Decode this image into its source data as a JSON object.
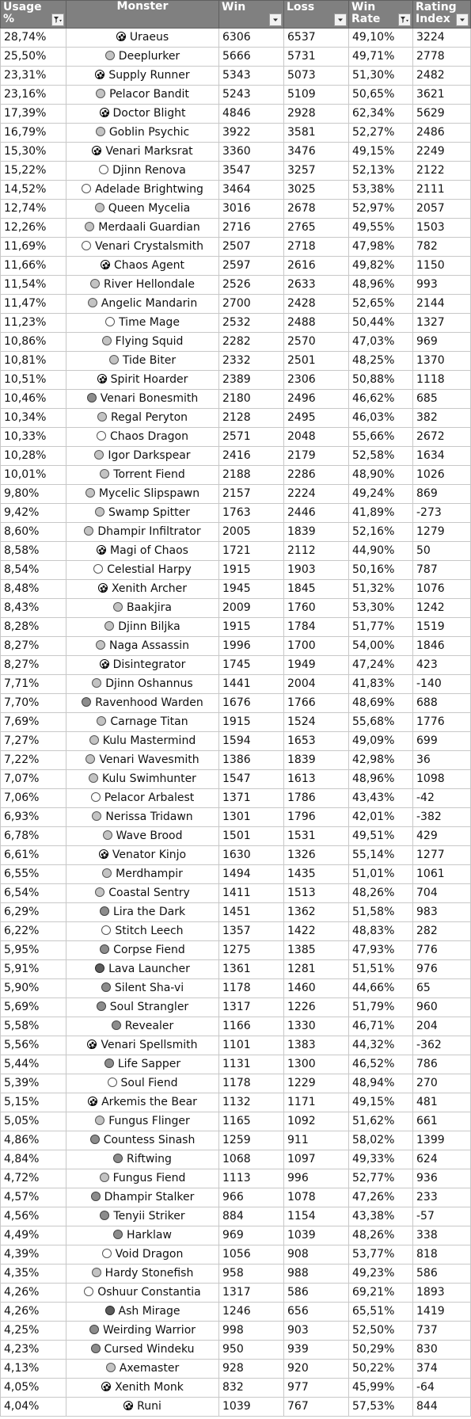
{
  "header": {
    "usage": "Usage %",
    "monster": "Monster",
    "win": "Win",
    "loss": "Loss",
    "win_rate": "Win Rate",
    "rating_index": "Rating Index"
  },
  "icons": {
    "filter": "filter-dropdown-icon",
    "filter_active": "filter-applied-icon",
    "color_dot": "mana-color-icon"
  },
  "colors": {
    "header_bg": "#808080",
    "header_text": "#ffffff",
    "grid": "#c8c8c8"
  },
  "rows": [
    {
      "usage": "28,74%",
      "dot": "multi",
      "monster": "Uraeus",
      "win": "6306",
      "loss": "6537",
      "rate": "49,10%",
      "index": "3224"
    },
    {
      "usage": "25,50%",
      "dot": "light",
      "monster": "Deeplurker",
      "win": "5666",
      "loss": "5731",
      "rate": "49,71%",
      "index": "2778"
    },
    {
      "usage": "23,31%",
      "dot": "multi",
      "monster": "Supply Runner",
      "win": "5343",
      "loss": "5073",
      "rate": "51,30%",
      "index": "2482"
    },
    {
      "usage": "23,16%",
      "dot": "light",
      "monster": "Pelacor Bandit",
      "win": "5243",
      "loss": "5109",
      "rate": "50,65%",
      "index": "3621"
    },
    {
      "usage": "17,39%",
      "dot": "multi",
      "monster": "Doctor Blight",
      "win": "4846",
      "loss": "2928",
      "rate": "62,34%",
      "index": "5629"
    },
    {
      "usage": "16,79%",
      "dot": "light",
      "monster": "Goblin Psychic",
      "win": "3922",
      "loss": "3581",
      "rate": "52,27%",
      "index": "2486"
    },
    {
      "usage": "15,30%",
      "dot": "multi",
      "monster": "Venari Marksrat",
      "win": "3360",
      "loss": "3476",
      "rate": "49,15%",
      "index": "2249"
    },
    {
      "usage": "15,22%",
      "dot": "white",
      "monster": "Djinn Renova",
      "win": "3547",
      "loss": "3257",
      "rate": "52,13%",
      "index": "2122"
    },
    {
      "usage": "14,52%",
      "dot": "white",
      "monster": "Adelade Brightwing",
      "win": "3464",
      "loss": "3025",
      "rate": "53,38%",
      "index": "2111"
    },
    {
      "usage": "12,74%",
      "dot": "light",
      "monster": "Queen Mycelia",
      "win": "3016",
      "loss": "2678",
      "rate": "52,97%",
      "index": "2057"
    },
    {
      "usage": "12,26%",
      "dot": "light",
      "monster": "Merdaali Guardian",
      "win": "2716",
      "loss": "2765",
      "rate": "49,55%",
      "index": "1503"
    },
    {
      "usage": "11,69%",
      "dot": "white",
      "monster": "Venari Crystalsmith",
      "win": "2507",
      "loss": "2718",
      "rate": "47,98%",
      "index": "782"
    },
    {
      "usage": "11,66%",
      "dot": "multi",
      "monster": "Chaos Agent",
      "win": "2597",
      "loss": "2616",
      "rate": "49,82%",
      "index": "1150"
    },
    {
      "usage": "11,54%",
      "dot": "light",
      "monster": "River Hellondale",
      "win": "2526",
      "loss": "2633",
      "rate": "48,96%",
      "index": "993"
    },
    {
      "usage": "11,47%",
      "dot": "light",
      "monster": "Angelic Mandarin",
      "win": "2700",
      "loss": "2428",
      "rate": "52,65%",
      "index": "2144"
    },
    {
      "usage": "11,23%",
      "dot": "white",
      "monster": "Time Mage",
      "win": "2532",
      "loss": "2488",
      "rate": "50,44%",
      "index": "1327"
    },
    {
      "usage": "10,86%",
      "dot": "light",
      "monster": "Flying Squid",
      "win": "2282",
      "loss": "2570",
      "rate": "47,03%",
      "index": "969"
    },
    {
      "usage": "10,81%",
      "dot": "light",
      "monster": "Tide Biter",
      "win": "2332",
      "loss": "2501",
      "rate": "48,25%",
      "index": "1370"
    },
    {
      "usage": "10,51%",
      "dot": "multi",
      "monster": "Spirit Hoarder",
      "win": "2389",
      "loss": "2306",
      "rate": "50,88%",
      "index": "1118"
    },
    {
      "usage": "10,46%",
      "dot": "mid",
      "monster": "Venari Bonesmith",
      "win": "2180",
      "loss": "2496",
      "rate": "46,62%",
      "index": "685"
    },
    {
      "usage": "10,34%",
      "dot": "light",
      "monster": "Regal Peryton",
      "win": "2128",
      "loss": "2495",
      "rate": "46,03%",
      "index": "382"
    },
    {
      "usage": "10,33%",
      "dot": "white",
      "monster": "Chaos Dragon",
      "win": "2571",
      "loss": "2048",
      "rate": "55,66%",
      "index": "2672"
    },
    {
      "usage": "10,28%",
      "dot": "light",
      "monster": "Igor Darkspear",
      "win": "2416",
      "loss": "2179",
      "rate": "52,58%",
      "index": "1634"
    },
    {
      "usage": "10,01%",
      "dot": "light",
      "monster": "Torrent Fiend",
      "win": "2188",
      "loss": "2286",
      "rate": "48,90%",
      "index": "1026"
    },
    {
      "usage": "9,80%",
      "dot": "light",
      "monster": "Mycelic Slipspawn",
      "win": "2157",
      "loss": "2224",
      "rate": "49,24%",
      "index": "869"
    },
    {
      "usage": "9,42%",
      "dot": "light",
      "monster": "Swamp Spitter",
      "win": "1763",
      "loss": "2446",
      "rate": "41,89%",
      "index": "-273"
    },
    {
      "usage": "8,60%",
      "dot": "light",
      "monster": "Dhampir Infiltrator",
      "win": "2005",
      "loss": "1839",
      "rate": "52,16%",
      "index": "1279"
    },
    {
      "usage": "8,58%",
      "dot": "multi",
      "monster": "Magi of Chaos",
      "win": "1721",
      "loss": "2112",
      "rate": "44,90%",
      "index": "50"
    },
    {
      "usage": "8,54%",
      "dot": "white",
      "monster": "Celestial Harpy",
      "win": "1915",
      "loss": "1903",
      "rate": "50,16%",
      "index": "787"
    },
    {
      "usage": "8,48%",
      "dot": "multi",
      "monster": "Xenith Archer",
      "win": "1945",
      "loss": "1845",
      "rate": "51,32%",
      "index": "1076"
    },
    {
      "usage": "8,43%",
      "dot": "light",
      "monster": "Baakjira",
      "win": "2009",
      "loss": "1760",
      "rate": "53,30%",
      "index": "1242"
    },
    {
      "usage": "8,28%",
      "dot": "light",
      "monster": "Djinn Biljka",
      "win": "1915",
      "loss": "1784",
      "rate": "51,77%",
      "index": "1519"
    },
    {
      "usage": "8,27%",
      "dot": "light",
      "monster": "Naga Assassin",
      "win": "1996",
      "loss": "1700",
      "rate": "54,00%",
      "index": "1846"
    },
    {
      "usage": "8,27%",
      "dot": "multi",
      "monster": "Disintegrator",
      "win": "1745",
      "loss": "1949",
      "rate": "47,24%",
      "index": "423"
    },
    {
      "usage": "7,71%",
      "dot": "light",
      "monster": "Djinn Oshannus",
      "win": "1441",
      "loss": "2004",
      "rate": "41,83%",
      "index": "-140"
    },
    {
      "usage": "7,70%",
      "dot": "mid",
      "monster": "Ravenhood Warden",
      "win": "1676",
      "loss": "1766",
      "rate": "48,69%",
      "index": "688"
    },
    {
      "usage": "7,69%",
      "dot": "light",
      "monster": "Carnage Titan",
      "win": "1915",
      "loss": "1524",
      "rate": "55,68%",
      "index": "1776"
    },
    {
      "usage": "7,27%",
      "dot": "light",
      "monster": "Kulu Mastermind",
      "win": "1594",
      "loss": "1653",
      "rate": "49,09%",
      "index": "699"
    },
    {
      "usage": "7,22%",
      "dot": "light",
      "monster": "Venari Wavesmith",
      "win": "1386",
      "loss": "1839",
      "rate": "42,98%",
      "index": "36"
    },
    {
      "usage": "7,07%",
      "dot": "light",
      "monster": "Kulu Swimhunter",
      "win": "1547",
      "loss": "1613",
      "rate": "48,96%",
      "index": "1098"
    },
    {
      "usage": "7,06%",
      "dot": "white",
      "monster": "Pelacor Arbalest",
      "win": "1371",
      "loss": "1786",
      "rate": "43,43%",
      "index": "-42"
    },
    {
      "usage": "6,93%",
      "dot": "light",
      "monster": "Nerissa Tridawn",
      "win": "1301",
      "loss": "1796",
      "rate": "42,01%",
      "index": "-382"
    },
    {
      "usage": "6,78%",
      "dot": "light",
      "monster": "Wave Brood",
      "win": "1501",
      "loss": "1531",
      "rate": "49,51%",
      "index": "429"
    },
    {
      "usage": "6,61%",
      "dot": "multi",
      "monster": "Venator Kinjo",
      "win": "1630",
      "loss": "1326",
      "rate": "55,14%",
      "index": "1277"
    },
    {
      "usage": "6,55%",
      "dot": "light",
      "monster": "Merdhampir",
      "win": "1494",
      "loss": "1435",
      "rate": "51,01%",
      "index": "1061"
    },
    {
      "usage": "6,54%",
      "dot": "light",
      "monster": "Coastal Sentry",
      "win": "1411",
      "loss": "1513",
      "rate": "48,26%",
      "index": "704"
    },
    {
      "usage": "6,29%",
      "dot": "mid",
      "monster": "Lira the Dark",
      "win": "1451",
      "loss": "1362",
      "rate": "51,58%",
      "index": "983"
    },
    {
      "usage": "6,22%",
      "dot": "white",
      "monster": "Stitch Leech",
      "win": "1357",
      "loss": "1422",
      "rate": "48,83%",
      "index": "282"
    },
    {
      "usage": "5,95%",
      "dot": "mid",
      "monster": "Corpse Fiend",
      "win": "1275",
      "loss": "1385",
      "rate": "47,93%",
      "index": "776"
    },
    {
      "usage": "5,91%",
      "dot": "dark",
      "monster": "Lava Launcher",
      "win": "1361",
      "loss": "1281",
      "rate": "51,51%",
      "index": "976"
    },
    {
      "usage": "5,90%",
      "dot": "mid",
      "monster": "Silent Sha-vi",
      "win": "1178",
      "loss": "1460",
      "rate": "44,66%",
      "index": "65"
    },
    {
      "usage": "5,69%",
      "dot": "mid",
      "monster": "Soul Strangler",
      "win": "1317",
      "loss": "1226",
      "rate": "51,79%",
      "index": "960"
    },
    {
      "usage": "5,58%",
      "dot": "mid",
      "monster": "Revealer",
      "win": "1166",
      "loss": "1330",
      "rate": "46,71%",
      "index": "204"
    },
    {
      "usage": "5,56%",
      "dot": "multi",
      "monster": "Venari Spellsmith",
      "win": "1101",
      "loss": "1383",
      "rate": "44,32%",
      "index": "-362"
    },
    {
      "usage": "5,44%",
      "dot": "mid",
      "monster": "Life Sapper",
      "win": "1131",
      "loss": "1300",
      "rate": "46,52%",
      "index": "786"
    },
    {
      "usage": "5,39%",
      "dot": "white",
      "monster": "Soul Fiend",
      "win": "1178",
      "loss": "1229",
      "rate": "48,94%",
      "index": "270"
    },
    {
      "usage": "5,15%",
      "dot": "multi",
      "monster": "Arkemis the Bear",
      "win": "1132",
      "loss": "1171",
      "rate": "49,15%",
      "index": "481"
    },
    {
      "usage": "5,05%",
      "dot": "light",
      "monster": "Fungus Flinger",
      "win": "1165",
      "loss": "1092",
      "rate": "51,62%",
      "index": "661"
    },
    {
      "usage": "4,86%",
      "dot": "mid",
      "monster": "Countess Sinash",
      "win": "1259",
      "loss": "911",
      "rate": "58,02%",
      "index": "1399"
    },
    {
      "usage": "4,84%",
      "dot": "mid",
      "monster": "Riftwing",
      "win": "1068",
      "loss": "1097",
      "rate": "49,33%",
      "index": "624"
    },
    {
      "usage": "4,72%",
      "dot": "light",
      "monster": "Fungus Fiend",
      "win": "1113",
      "loss": "996",
      "rate": "52,77%",
      "index": "936"
    },
    {
      "usage": "4,57%",
      "dot": "mid",
      "monster": "Dhampir Stalker",
      "win": "966",
      "loss": "1078",
      "rate": "47,26%",
      "index": "233"
    },
    {
      "usage": "4,56%",
      "dot": "mid",
      "monster": "Tenyii Striker",
      "win": "884",
      "loss": "1154",
      "rate": "43,38%",
      "index": "-57"
    },
    {
      "usage": "4,49%",
      "dot": "mid",
      "monster": "Harklaw",
      "win": "969",
      "loss": "1039",
      "rate": "48,26%",
      "index": "338"
    },
    {
      "usage": "4,39%",
      "dot": "white",
      "monster": "Void Dragon",
      "win": "1056",
      "loss": "908",
      "rate": "53,77%",
      "index": "818"
    },
    {
      "usage": "4,35%",
      "dot": "light",
      "monster": "Hardy Stonefish",
      "win": "958",
      "loss": "988",
      "rate": "49,23%",
      "index": "586"
    },
    {
      "usage": "4,26%",
      "dot": "white",
      "monster": "Oshuur Constantia",
      "win": "1317",
      "loss": "586",
      "rate": "69,21%",
      "index": "1893"
    },
    {
      "usage": "4,26%",
      "dot": "dark",
      "monster": "Ash Mirage",
      "win": "1246",
      "loss": "656",
      "rate": "65,51%",
      "index": "1419"
    },
    {
      "usage": "4,25%",
      "dot": "mid",
      "monster": "Weirding Warrior",
      "win": "998",
      "loss": "903",
      "rate": "52,50%",
      "index": "737"
    },
    {
      "usage": "4,23%",
      "dot": "mid",
      "monster": "Cursed Windeku",
      "win": "950",
      "loss": "939",
      "rate": "50,29%",
      "index": "830"
    },
    {
      "usage": "4,13%",
      "dot": "light",
      "monster": "Axemaster",
      "win": "928",
      "loss": "920",
      "rate": "50,22%",
      "index": "374"
    },
    {
      "usage": "4,05%",
      "dot": "multi",
      "monster": "Xenith Monk",
      "win": "832",
      "loss": "977",
      "rate": "45,99%",
      "index": "-64"
    },
    {
      "usage": "4,04%",
      "dot": "multi",
      "monster": "Runi",
      "win": "1039",
      "loss": "767",
      "rate": "57,53%",
      "index": "844"
    }
  ]
}
